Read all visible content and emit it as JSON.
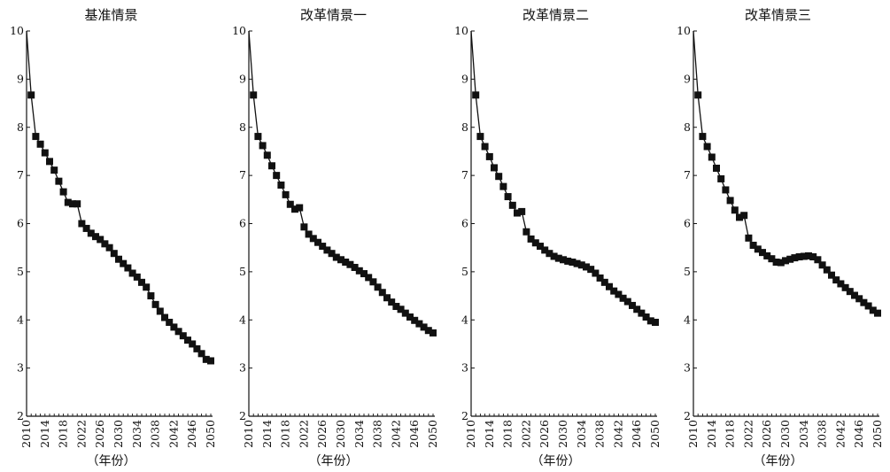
{
  "chart_data": [
    {
      "type": "line",
      "title": "基准情景",
      "xlabel": "（年份）",
      "ylabel": "",
      "ylim": [
        2,
        10
      ],
      "xlim": [
        2010,
        2050
      ],
      "yticks": [
        2,
        3,
        4,
        5,
        6,
        7,
        8,
        9,
        10
      ],
      "xticks": [
        2010,
        2014,
        2018,
        2022,
        2026,
        2030,
        2034,
        2038,
        2042,
        2046,
        2050
      ],
      "grid": false,
      "marker": "square",
      "x": [
        2010,
        2011,
        2012,
        2013,
        2014,
        2015,
        2016,
        2017,
        2018,
        2019,
        2020,
        2021,
        2022,
        2023,
        2024,
        2025,
        2026,
        2027,
        2028,
        2029,
        2030,
        2031,
        2032,
        2033,
        2034,
        2035,
        2036,
        2037,
        2038,
        2039,
        2040,
        2041,
        2042,
        2043,
        2044,
        2045,
        2046,
        2047,
        2048,
        2049,
        2050
      ],
      "y": [
        10.0,
        8.67,
        7.81,
        7.65,
        7.47,
        7.29,
        7.11,
        6.88,
        6.66,
        6.44,
        6.41,
        6.41,
        6.0,
        5.9,
        5.8,
        5.73,
        5.67,
        5.58,
        5.5,
        5.38,
        5.26,
        5.17,
        5.08,
        4.97,
        4.89,
        4.78,
        4.68,
        4.5,
        4.32,
        4.18,
        4.05,
        3.95,
        3.85,
        3.76,
        3.67,
        3.58,
        3.5,
        3.4,
        3.3,
        3.18,
        3.15
      ]
    },
    {
      "type": "line",
      "title": "改革情景一",
      "xlabel": "（年份）",
      "ylabel": "",
      "ylim": [
        2,
        10
      ],
      "xlim": [
        2010,
        2050
      ],
      "yticks": [
        2,
        3,
        4,
        5,
        6,
        7,
        8,
        9,
        10
      ],
      "xticks": [
        2010,
        2014,
        2018,
        2022,
        2026,
        2030,
        2034,
        2038,
        2042,
        2046,
        2050
      ],
      "grid": false,
      "marker": "square",
      "x": [
        2010,
        2011,
        2012,
        2013,
        2014,
        2015,
        2016,
        2017,
        2018,
        2019,
        2020,
        2021,
        2022,
        2023,
        2024,
        2025,
        2026,
        2027,
        2028,
        2029,
        2030,
        2031,
        2032,
        2033,
        2034,
        2035,
        2036,
        2037,
        2038,
        2039,
        2040,
        2041,
        2042,
        2043,
        2044,
        2045,
        2046,
        2047,
        2048,
        2049,
        2050
      ],
      "y": [
        10.0,
        8.67,
        7.81,
        7.62,
        7.42,
        7.2,
        7.0,
        6.8,
        6.6,
        6.4,
        6.3,
        6.33,
        5.93,
        5.78,
        5.69,
        5.61,
        5.53,
        5.45,
        5.38,
        5.3,
        5.25,
        5.2,
        5.15,
        5.09,
        5.02,
        4.96,
        4.88,
        4.79,
        4.68,
        4.57,
        4.46,
        4.37,
        4.28,
        4.22,
        4.14,
        4.06,
        3.99,
        3.92,
        3.85,
        3.78,
        3.73
      ]
    },
    {
      "type": "line",
      "title": "改革情景二",
      "xlabel": "（年份）",
      "ylabel": "",
      "ylim": [
        2,
        10
      ],
      "xlim": [
        2010,
        2050
      ],
      "yticks": [
        2,
        3,
        4,
        5,
        6,
        7,
        8,
        9,
        10
      ],
      "xticks": [
        2010,
        2014,
        2018,
        2022,
        2026,
        2030,
        2034,
        2038,
        2042,
        2046,
        2050
      ],
      "grid": false,
      "marker": "square",
      "x": [
        2010,
        2011,
        2012,
        2013,
        2014,
        2015,
        2016,
        2017,
        2018,
        2019,
        2020,
        2021,
        2022,
        2023,
        2024,
        2025,
        2026,
        2027,
        2028,
        2029,
        2030,
        2031,
        2032,
        2033,
        2034,
        2035,
        2036,
        2037,
        2038,
        2039,
        2040,
        2041,
        2042,
        2043,
        2044,
        2045,
        2046,
        2047,
        2048,
        2049,
        2050
      ],
      "y": [
        10.0,
        8.67,
        7.81,
        7.6,
        7.39,
        7.16,
        6.98,
        6.77,
        6.56,
        6.38,
        6.22,
        6.25,
        5.83,
        5.68,
        5.6,
        5.53,
        5.45,
        5.38,
        5.32,
        5.28,
        5.25,
        5.22,
        5.2,
        5.17,
        5.14,
        5.1,
        5.05,
        4.97,
        4.87,
        4.78,
        4.69,
        4.6,
        4.53,
        4.45,
        4.38,
        4.3,
        4.22,
        4.14,
        4.06,
        3.98,
        3.95
      ]
    },
    {
      "type": "line",
      "title": "改革情景三",
      "xlabel": "（年份）",
      "ylabel": "",
      "ylim": [
        2,
        10
      ],
      "xlim": [
        2010,
        2050
      ],
      "yticks": [
        2,
        3,
        4,
        5,
        6,
        7,
        8,
        9,
        10
      ],
      "xticks": [
        2010,
        2014,
        2018,
        2022,
        2026,
        2030,
        2034,
        2038,
        2042,
        2046,
        2050
      ],
      "grid": false,
      "marker": "square",
      "x": [
        2010,
        2011,
        2012,
        2013,
        2014,
        2015,
        2016,
        2017,
        2018,
        2019,
        2020,
        2021,
        2022,
        2023,
        2024,
        2025,
        2026,
        2027,
        2028,
        2029,
        2030,
        2031,
        2032,
        2033,
        2034,
        2035,
        2036,
        2037,
        2038,
        2039,
        2040,
        2041,
        2042,
        2043,
        2044,
        2045,
        2046,
        2047,
        2048,
        2049,
        2050
      ],
      "y": [
        10.0,
        8.67,
        7.81,
        7.6,
        7.38,
        7.15,
        6.93,
        6.7,
        6.48,
        6.28,
        6.13,
        6.17,
        5.7,
        5.55,
        5.47,
        5.4,
        5.33,
        5.27,
        5.2,
        5.19,
        5.23,
        5.26,
        5.29,
        5.31,
        5.32,
        5.33,
        5.31,
        5.25,
        5.14,
        5.04,
        4.93,
        4.83,
        4.75,
        4.67,
        4.59,
        4.51,
        4.44,
        4.36,
        4.29,
        4.2,
        4.14
      ]
    }
  ]
}
